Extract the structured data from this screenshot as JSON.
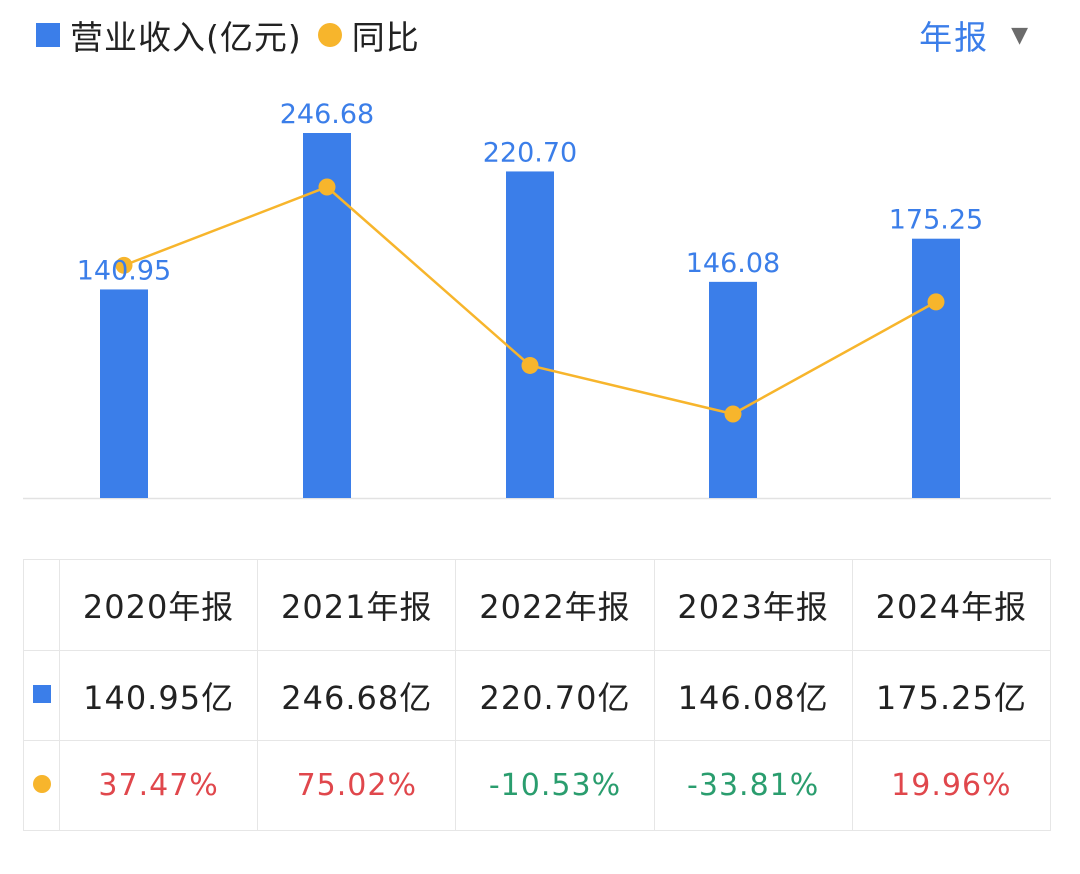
{
  "legend": {
    "revenue_label": "营业收入(亿元)",
    "yoy_label": "同比"
  },
  "period_selector": {
    "label": "年报"
  },
  "colors": {
    "bar": "#3b7ee9",
    "line": "#f7b52c",
    "bar_label": "#3b7ee9",
    "positive": "#e0474c",
    "negative": "#2a9d6e"
  },
  "chart_data": {
    "type": "bar",
    "categories": [
      "2020年报",
      "2021年报",
      "2022年报",
      "2023年报",
      "2024年报"
    ],
    "series": [
      {
        "name": "营业收入(亿元)",
        "type": "bar",
        "values": [
          140.95,
          246.68,
          220.7,
          146.08,
          175.25
        ],
        "labels": [
          "140.95",
          "246.68",
          "220.70",
          "146.08",
          "175.25"
        ]
      },
      {
        "name": "同比",
        "type": "line",
        "values": [
          37.47,
          75.02,
          -10.53,
          -33.81,
          19.96
        ]
      }
    ],
    "legend": "top-left"
  },
  "table": {
    "headers": [
      "2020年报",
      "2021年报",
      "2022年报",
      "2023年报",
      "2024年报"
    ],
    "revenue": [
      "140.95亿",
      "246.68亿",
      "220.70亿",
      "146.08亿",
      "175.25亿"
    ],
    "yoy": [
      "37.47%",
      "75.02%",
      "-10.53%",
      "-33.81%",
      "19.96%"
    ]
  }
}
